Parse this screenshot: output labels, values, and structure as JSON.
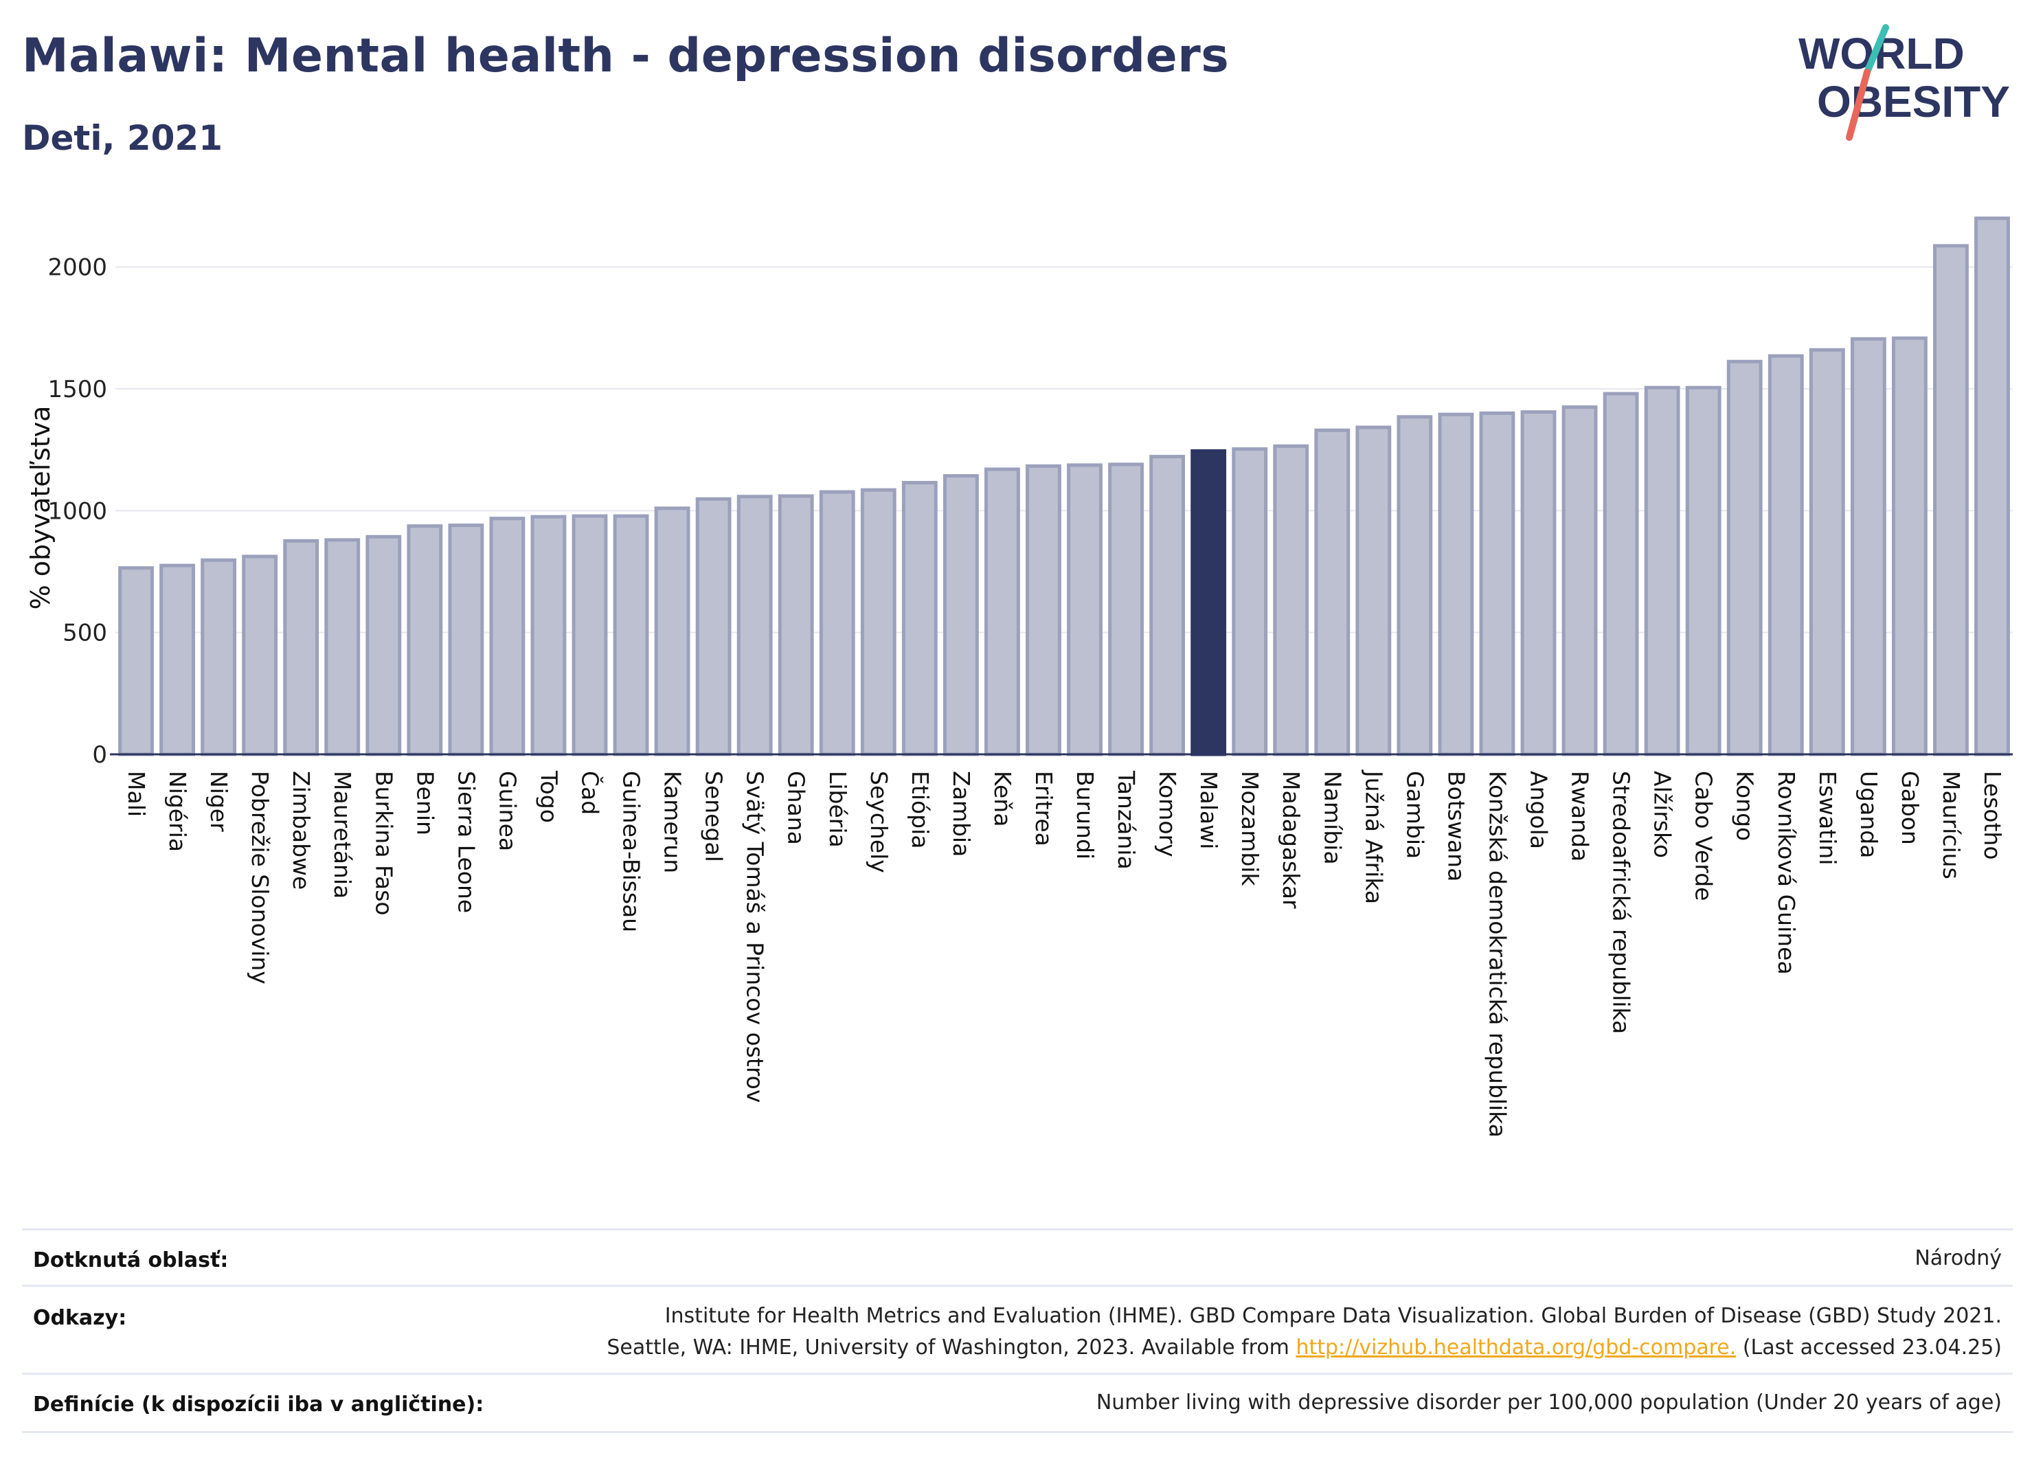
{
  "header": {
    "title": "Malawi: Mental health - depression disorders",
    "subtitle": "Deti, 2021"
  },
  "logo": {
    "line1": "WORLD",
    "line2": "OBESITY",
    "colors": {
      "text": "#2d3561",
      "slash_top": "#3bbfb4",
      "slash_bottom": "#e8665a"
    }
  },
  "colors": {
    "bar": "#bcc0d1",
    "bar_stroke": "#9ba1bb",
    "highlight": "#2d3561",
    "grid": "#e6e8f0",
    "axis": "#2d3561"
  },
  "chart_data": {
    "type": "bar",
    "ylabel": "% obyvateľstva",
    "ylim": [
      0,
      2250
    ],
    "yticks": [
      0,
      500,
      1000,
      1500,
      2000
    ],
    "grid": true,
    "highlight": "Malawi",
    "categories": [
      "Mali",
      "Nigéria",
      "Niger",
      "Pobrežie Slonoviny",
      "Zimbabwe",
      "Mauretánia",
      "Burkina Faso",
      "Benin",
      "Sierra Leone",
      "Guinea",
      "Togo",
      "Čad",
      "Guinea-Bissau",
      "Kamerun",
      "Senegal",
      "Svätý Tomáš a Princov ostrov",
      "Ghana",
      "Libéria",
      "Seychely",
      "Etiópia",
      "Zambia",
      "Keňa",
      "Eritrea",
      "Burundi",
      "Tanzánia",
      "Komory",
      "Malawi",
      "Mozambik",
      "Madagaskar",
      "Namíbia",
      "Južná Afrika",
      "Gambia",
      "Botswana",
      "Konžská demokratická republika",
      "Angola",
      "Rwanda",
      "Stredoafrická republika",
      "Alžírsko",
      "Cabo Verde",
      "Kongo",
      "Rovníková Guinea",
      "Eswatini",
      "Uganda",
      "Gabon",
      "Maurícius",
      "Lesotho"
    ],
    "values": [
      765,
      775,
      797,
      812,
      876,
      880,
      893,
      937,
      940,
      968,
      975,
      978,
      978,
      1010,
      1048,
      1058,
      1060,
      1077,
      1085,
      1115,
      1143,
      1170,
      1183,
      1187,
      1190,
      1222,
      1245,
      1253,
      1265,
      1330,
      1342,
      1385,
      1395,
      1400,
      1405,
      1425,
      1480,
      1505,
      1505,
      1612,
      1635,
      1660,
      1705,
      1708,
      2087,
      2200
    ]
  },
  "footer": {
    "rows": [
      {
        "key": "Dotknutá oblasť:",
        "value": "Národný"
      },
      {
        "key": "Odkazy:",
        "value_line1": "Institute for Health Metrics and Evaluation (IHME). GBD Compare Data Visualization. Global Burden of Disease (GBD) Study 2021.",
        "value_line2_pre": "Seattle, WA: IHME, University of Washington, 2023. Available from ",
        "link": "http://vizhub.healthdata.org/gbd-compare.",
        "value_line2_post": " (Last accessed 23.04.25)"
      },
      {
        "key": "Definície (k dispozícii iba v angličtine):",
        "value": "Number living with depressive disorder per 100,000 population (Under 20 years of age)"
      }
    ]
  }
}
